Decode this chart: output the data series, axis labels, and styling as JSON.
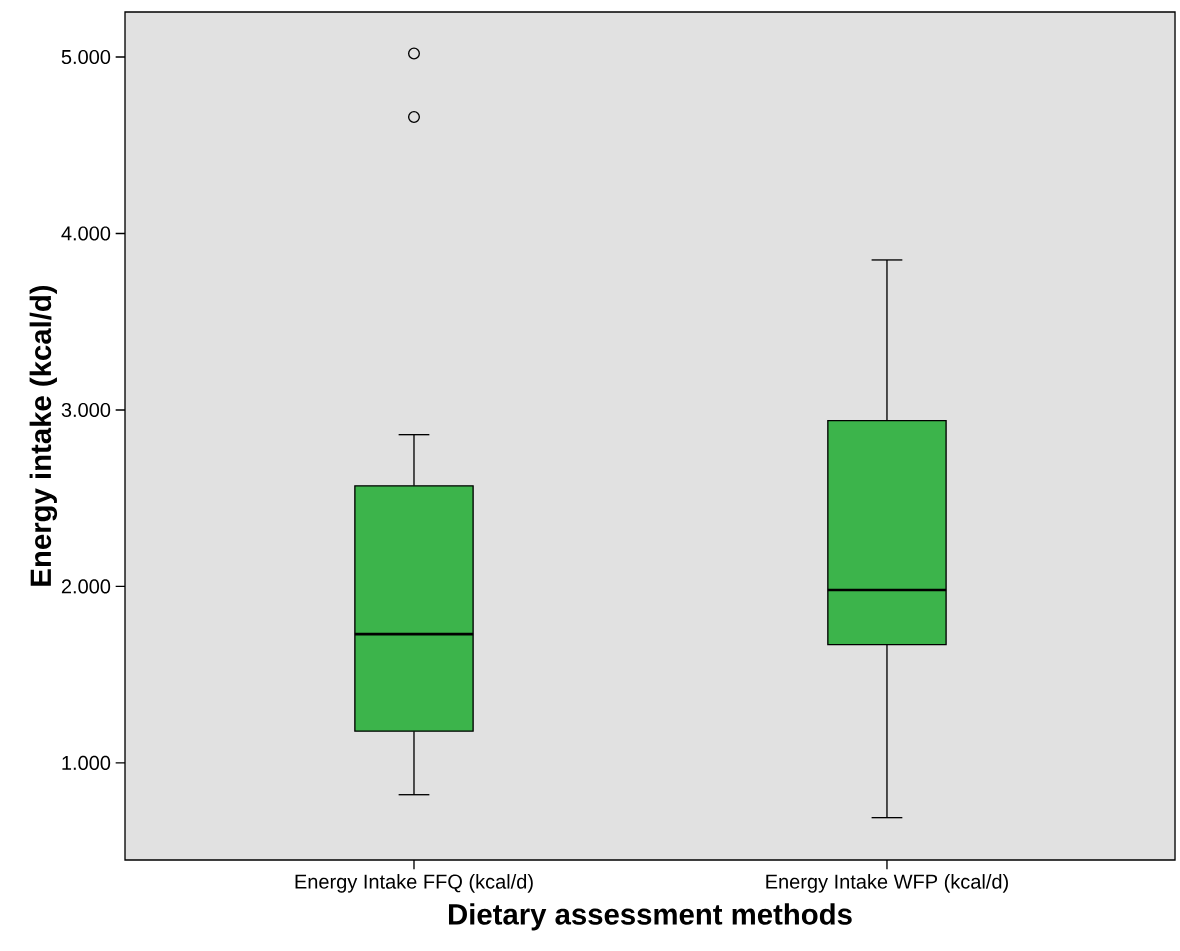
{
  "chart_data": {
    "type": "box",
    "xlabel": "Dietary assessment methods",
    "ylabel": "Energy intake (kcal/d)",
    "categories": [
      "Energy Intake FFQ (kcal/d)",
      "Energy Intake WFP (kcal/d)"
    ],
    "series": [
      {
        "color": "#3cb44b",
        "boxes": [
          {
            "low": 820,
            "q1": 1180,
            "median": 1730,
            "q3": 2570,
            "high": 2860,
            "outliers": [
              5020,
              4660
            ]
          },
          {
            "low": 690,
            "q1": 1670,
            "median": 1980,
            "q3": 2940,
            "high": 3850
          }
        ]
      }
    ],
    "ylim": [
      450,
      5255
    ],
    "yticks": [
      {
        "value": 1000,
        "label": "1.000"
      },
      {
        "value": 2000,
        "label": "2.000"
      },
      {
        "value": 3000,
        "label": "3.000"
      },
      {
        "value": 4000,
        "label": "4.000"
      },
      {
        "value": 5000,
        "label": "5.000"
      }
    ]
  }
}
